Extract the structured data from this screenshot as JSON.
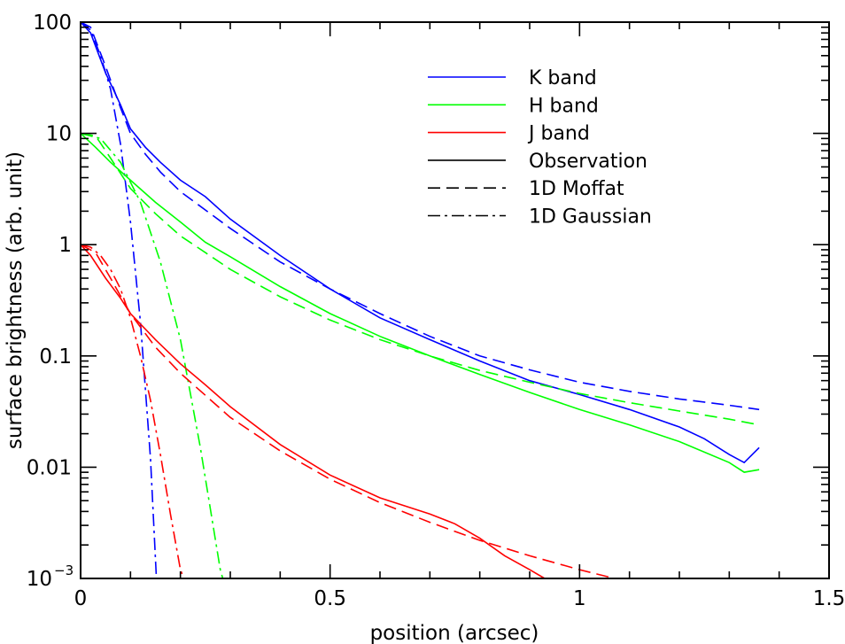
{
  "chart_data": {
    "type": "line",
    "title": "",
    "xlabel": "position (arcsec)",
    "ylabel": "surface brightness (arb. unit)",
    "xlim": [
      0,
      1.5
    ],
    "ylim": [
      0.001,
      100
    ],
    "yscale": "log",
    "grid": false,
    "legend_position": "top-right",
    "x_ticks": [
      {
        "value": 0,
        "label": "0"
      },
      {
        "value": 0.5,
        "label": "0.5"
      },
      {
        "value": 1,
        "label": "1"
      },
      {
        "value": 1.5,
        "label": "1.5"
      }
    ],
    "y_ticks": [
      {
        "value": 100,
        "label": "100"
      },
      {
        "value": 10,
        "label": "10"
      },
      {
        "value": 1,
        "label": "1"
      },
      {
        "value": 0.1,
        "label": "0.1"
      },
      {
        "value": 0.01,
        "label": "0.01"
      },
      {
        "value": 0.001,
        "label": "10",
        "exponent": "−3"
      }
    ],
    "legend": [
      {
        "label": "K band",
        "color": "#0000ff",
        "style": "solid"
      },
      {
        "label": "H band",
        "color": "#00ff00",
        "style": "solid"
      },
      {
        "label": "J band",
        "color": "#ff0000",
        "style": "solid"
      },
      {
        "label": "Observation",
        "color": "#000000",
        "style": "solid"
      },
      {
        "label": "1D Moffat",
        "color": "#000000",
        "style": "dashed"
      },
      {
        "label": "1D Gaussian",
        "color": "#000000",
        "style": "dashdot"
      }
    ],
    "series": [
      {
        "band": "K",
        "model": "Observation",
        "color": "#0000ff",
        "style": "solid",
        "x": [
          0,
          0.02,
          0.05,
          0.08,
          0.1,
          0.13,
          0.16,
          0.2,
          0.25,
          0.3,
          0.4,
          0.5,
          0.6,
          0.7,
          0.8,
          0.9,
          1.0,
          1.1,
          1.2,
          1.25,
          1.3,
          1.33,
          1.36
        ],
        "y": [
          100,
          80,
          35,
          18,
          11,
          7.5,
          5.5,
          3.8,
          2.7,
          1.7,
          0.8,
          0.4,
          0.22,
          0.14,
          0.09,
          0.06,
          0.045,
          0.033,
          0.023,
          0.018,
          0.013,
          0.011,
          0.015
        ]
      },
      {
        "band": "K",
        "model": "1D Moffat",
        "color": "#0000ff",
        "style": "dashed",
        "x": [
          0,
          0.02,
          0.05,
          0.08,
          0.1,
          0.13,
          0.16,
          0.2,
          0.3,
          0.4,
          0.5,
          0.6,
          0.7,
          0.8,
          0.9,
          1.0,
          1.1,
          1.2,
          1.3,
          1.36
        ],
        "y": [
          100,
          90,
          40,
          17,
          10,
          6.5,
          4.5,
          3.0,
          1.4,
          0.7,
          0.4,
          0.24,
          0.15,
          0.1,
          0.075,
          0.058,
          0.048,
          0.041,
          0.036,
          0.033
        ]
      },
      {
        "band": "K",
        "model": "1D Gaussian",
        "color": "#0000ff",
        "style": "dashdot",
        "x": [
          0,
          0.02,
          0.04,
          0.06,
          0.08,
          0.1,
          0.12,
          0.14,
          0.152
        ],
        "y": [
          100,
          85,
          50,
          25,
          8,
          1.6,
          0.2,
          0.012,
          0.001
        ]
      },
      {
        "band": "H",
        "model": "Observation",
        "color": "#00ff00",
        "style": "solid",
        "x": [
          0,
          0.03,
          0.06,
          0.1,
          0.15,
          0.2,
          0.25,
          0.3,
          0.4,
          0.5,
          0.6,
          0.7,
          0.8,
          0.9,
          1.0,
          1.1,
          1.2,
          1.3,
          1.33,
          1.36
        ],
        "y": [
          10,
          7.5,
          5.5,
          3.8,
          2.4,
          1.6,
          1.05,
          0.78,
          0.42,
          0.24,
          0.15,
          0.1,
          0.068,
          0.047,
          0.033,
          0.024,
          0.017,
          0.011,
          0.009,
          0.0095
        ]
      },
      {
        "band": "H",
        "model": "1D Moffat",
        "color": "#00ff00",
        "style": "dashed",
        "x": [
          0,
          0.03,
          0.06,
          0.1,
          0.15,
          0.2,
          0.25,
          0.3,
          0.4,
          0.5,
          0.6,
          0.7,
          0.8,
          0.9,
          1.0,
          1.1,
          1.2,
          1.3,
          1.36
        ],
        "y": [
          10,
          9.5,
          6,
          3.2,
          1.9,
          1.2,
          0.85,
          0.6,
          0.34,
          0.21,
          0.14,
          0.1,
          0.074,
          0.058,
          0.046,
          0.038,
          0.032,
          0.027,
          0.024
        ]
      },
      {
        "band": "H",
        "model": "1D Gaussian",
        "color": "#00ff00",
        "style": "dashdot",
        "x": [
          0,
          0.04,
          0.08,
          0.12,
          0.16,
          0.2,
          0.24,
          0.28,
          0.285
        ],
        "y": [
          10,
          9,
          5.5,
          2.4,
          0.7,
          0.14,
          0.015,
          0.0012,
          0.001
        ]
      },
      {
        "band": "J",
        "model": "Observation",
        "color": "#ff0000",
        "style": "solid",
        "x": [
          0,
          0.02,
          0.05,
          0.08,
          0.1,
          0.15,
          0.2,
          0.25,
          0.3,
          0.4,
          0.5,
          0.6,
          0.7,
          0.75,
          0.8,
          0.85,
          0.9,
          0.93
        ],
        "y": [
          1,
          0.8,
          0.5,
          0.33,
          0.24,
          0.14,
          0.085,
          0.055,
          0.035,
          0.016,
          0.0085,
          0.0053,
          0.0038,
          0.0031,
          0.0023,
          0.0016,
          0.0012,
          0.001
        ]
      },
      {
        "band": "J",
        "model": "1D Moffat",
        "color": "#ff0000",
        "style": "dashed",
        "x": [
          0,
          0.03,
          0.06,
          0.1,
          0.15,
          0.2,
          0.3,
          0.4,
          0.5,
          0.6,
          0.7,
          0.8,
          0.9,
          1.0,
          1.07
        ],
        "y": [
          1,
          0.85,
          0.5,
          0.24,
          0.12,
          0.07,
          0.028,
          0.014,
          0.0078,
          0.0048,
          0.0032,
          0.0022,
          0.0016,
          0.0012,
          0.001
        ]
      },
      {
        "band": "J",
        "model": "1D Gaussian",
        "color": "#ff0000",
        "style": "dashdot",
        "x": [
          0,
          0.02,
          0.04,
          0.06,
          0.08,
          0.1,
          0.12,
          0.14,
          0.16,
          0.18,
          0.2,
          0.207
        ],
        "y": [
          1,
          0.95,
          0.8,
          0.6,
          0.4,
          0.22,
          0.1,
          0.04,
          0.013,
          0.0038,
          0.0012,
          0.001
        ]
      }
    ]
  }
}
